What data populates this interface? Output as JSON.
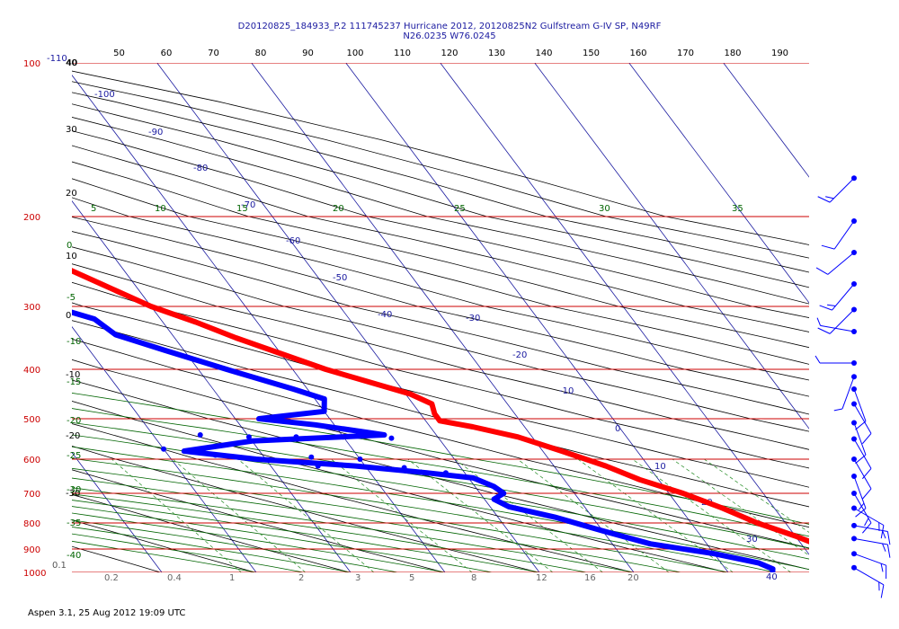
{
  "header": {
    "title_line1": "D20120825_184933_P.2 111745237 Hurricane 2012, 20120825N2 Gulfstream G-IV SP, N49RF",
    "title_line2": "N26.0235 W76.0245"
  },
  "footer": {
    "text": "Aspen 3.1, 25 Aug 2012  19:09 UTC"
  },
  "colors": {
    "temperature": "#ff0000",
    "dewpoint": "#0000ff",
    "isobar": "#cc0000",
    "isotherm": "#1a1aa0",
    "dry_adiabat": "#000000",
    "moist_adiabat": "#006400",
    "mixing_ratio": "#228b22",
    "wind": "#0000ff"
  },
  "chart_data": {
    "type": "skew-t",
    "pressure_range": [
      100,
      1000
    ],
    "pressure_levels": [
      100,
      200,
      300,
      400,
      500,
      600,
      700,
      800,
      900,
      1000
    ],
    "pressure_labels": [
      "100",
      "200",
      "300",
      "400",
      "500",
      "600",
      "700",
      "800",
      "900",
      "1000"
    ],
    "top_axis_labels": [
      "-110",
      "40",
      "50",
      "60",
      "70",
      "80",
      "90",
      "100",
      "110",
      "120",
      "130",
      "140",
      "150",
      "160",
      "170",
      "180",
      "190"
    ],
    "isotherm_labels": [
      "-100",
      "-90",
      "-80",
      "-70",
      "-60",
      "-50",
      "-40",
      "-30",
      "-20",
      "-10",
      "0",
      "10",
      "20",
      "30",
      "40"
    ],
    "dry_adiabat_labels": [
      "40",
      "30",
      "20",
      "10",
      "0",
      "-10",
      "-20",
      "-30"
    ],
    "moist_adiabat_labels": [
      "5",
      "10",
      "15",
      "20",
      "25",
      "30",
      "35"
    ],
    "moist_adiabat_left_labels": [
      "0",
      "-5",
      "-10",
      "-15",
      "-20",
      "-25",
      "-30",
      "-35",
      "-40"
    ],
    "mixing_ratio_labels": [
      "0.1",
      "0.2",
      "0.4",
      "1",
      "2",
      "3",
      "5",
      "8",
      "12",
      "16",
      "20"
    ],
    "temperature_profile": [
      {
        "p": 207,
        "t": -44.0
      },
      {
        "p": 225,
        "t": -41.0
      },
      {
        "p": 250,
        "t": -37.0
      },
      {
        "p": 275,
        "t": -33.5
      },
      {
        "p": 300,
        "t": -30.0
      },
      {
        "p": 325,
        "t": -26.5
      },
      {
        "p": 350,
        "t": -23.5
      },
      {
        "p": 375,
        "t": -20.0
      },
      {
        "p": 400,
        "t": -16.5
      },
      {
        "p": 425,
        "t": -13.0
      },
      {
        "p": 450,
        "t": -9.5
      },
      {
        "p": 470,
        "t": -8.0
      },
      {
        "p": 490,
        "t": -8.5
      },
      {
        "p": 505,
        "t": -8.5
      },
      {
        "p": 520,
        "t": -5.5
      },
      {
        "p": 545,
        "t": -1.5
      },
      {
        "p": 580,
        "t": 2.0
      },
      {
        "p": 620,
        "t": 5.5
      },
      {
        "p": 660,
        "t": 8.0
      },
      {
        "p": 700,
        "t": 11.5
      },
      {
        "p": 750,
        "t": 14.5
      },
      {
        "p": 800,
        "t": 17.0
      },
      {
        "p": 850,
        "t": 20.0
      },
      {
        "p": 900,
        "t": 22.5
      },
      {
        "p": 950,
        "t": 25.0
      },
      {
        "p": 1000,
        "t": 28.5
      }
    ],
    "dewpoint_profile": [
      {
        "p": 215,
        "t": -58.0
      },
      {
        "p": 230,
        "t": -55.0
      },
      {
        "p": 245,
        "t": -50.0
      },
      {
        "p": 260,
        "t": -47.5
      },
      {
        "p": 290,
        "t": -43.0
      },
      {
        "p": 320,
        "t": -37.0
      },
      {
        "p": 345,
        "t": -36.0
      },
      {
        "p": 370,
        "t": -32.0
      },
      {
        "p": 400,
        "t": -27.0
      },
      {
        "p": 440,
        "t": -21.5
      },
      {
        "p": 460,
        "t": -19.0
      },
      {
        "p": 485,
        "t": -20.0
      },
      {
        "p": 500,
        "t": -27.5
      },
      {
        "p": 515,
        "t": -22.0
      },
      {
        "p": 540,
        "t": -15.5
      },
      {
        "p": 555,
        "t": -30.0
      },
      {
        "p": 580,
        "t": -38.0
      },
      {
        "p": 600,
        "t": -31.0
      },
      {
        "p": 620,
        "t": -21.0
      },
      {
        "p": 640,
        "t": -14.0
      },
      {
        "p": 655,
        "t": -9.5
      },
      {
        "p": 680,
        "t": -8.0
      },
      {
        "p": 700,
        "t": -7.5
      },
      {
        "p": 720,
        "t": -9.0
      },
      {
        "p": 745,
        "t": -8.0
      },
      {
        "p": 780,
        "t": -4.0
      },
      {
        "p": 830,
        "t": 0.0
      },
      {
        "p": 880,
        "t": 4.0
      },
      {
        "p": 920,
        "t": 10.0
      },
      {
        "p": 960,
        "t": 14.0
      },
      {
        "p": 985,
        "t": 15.0
      },
      {
        "p": 1010,
        "t": 14.5
      }
    ],
    "dewpoint_scatter": [
      {
        "p": 540,
        "t": -35
      },
      {
        "p": 545,
        "t": -30
      },
      {
        "p": 545,
        "t": -25
      },
      {
        "p": 545,
        "t": -20
      },
      {
        "p": 548,
        "t": -15
      },
      {
        "p": 575,
        "t": -40
      },
      {
        "p": 590,
        "t": -35
      },
      {
        "p": 595,
        "t": -25
      },
      {
        "p": 600,
        "t": -20
      },
      {
        "p": 620,
        "t": -25
      },
      {
        "p": 625,
        "t": -16
      },
      {
        "p": 640,
        "t": -12
      }
    ],
    "isolated_temperature_point": {
      "p": 170,
      "t": -50.0
    },
    "winds": [
      {
        "p": 175,
        "dir": 225,
        "spd": 15
      },
      {
        "p": 205,
        "dir": 215,
        "spd": 10
      },
      {
        "p": 240,
        "dir": 230,
        "spd": 10
      },
      {
        "p": 275,
        "dir": 220,
        "spd": 15
      },
      {
        "p": 305,
        "dir": 225,
        "spd": 10
      },
      {
        "p": 340,
        "dir": 280,
        "spd": 5
      },
      {
        "p": 390,
        "dir": 270,
        "spd": 5
      },
      {
        "p": 415,
        "dir": 200,
        "spd": 5
      },
      {
        "p": 440,
        "dir": 160,
        "spd": 10
      },
      {
        "p": 470,
        "dir": 150,
        "spd": 10
      },
      {
        "p": 510,
        "dir": 160,
        "spd": 10
      },
      {
        "p": 550,
        "dir": 150,
        "spd": 10
      },
      {
        "p": 600,
        "dir": 150,
        "spd": 10
      },
      {
        "p": 650,
        "dir": 160,
        "spd": 15
      },
      {
        "p": 700,
        "dir": 150,
        "spd": 15
      },
      {
        "p": 750,
        "dir": 120,
        "spd": 15
      },
      {
        "p": 810,
        "dir": 100,
        "spd": 15
      },
      {
        "p": 860,
        "dir": 100,
        "spd": 15
      },
      {
        "p": 920,
        "dir": 110,
        "spd": 15
      },
      {
        "p": 980,
        "dir": 120,
        "spd": 15
      }
    ]
  }
}
